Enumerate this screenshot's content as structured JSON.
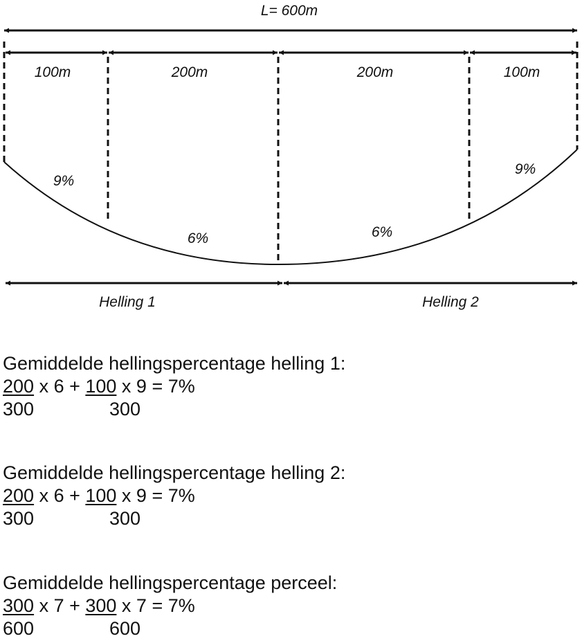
{
  "diagram": {
    "total_label": "L= 600m",
    "segments": [
      {
        "length_label": "100m",
        "slope_label": "9%"
      },
      {
        "length_label": "200m",
        "slope_label": "6%"
      },
      {
        "length_label": "200m",
        "slope_label": "6%"
      },
      {
        "length_label": "100m",
        "slope_label": "9%"
      }
    ],
    "slopes": [
      {
        "label": "Helling 1"
      },
      {
        "label": "Helling 2"
      }
    ]
  },
  "calculations": [
    {
      "heading": "Gemiddelde hellingspercentage helling 1:",
      "term1_num": "200",
      "term1_rest": " x 6 + ",
      "term2_num": "100",
      "term2_rest": " x 9 = 7%",
      "den1": "300",
      "den2": "300"
    },
    {
      "heading": "Gemiddelde hellingspercentage helling 2:",
      "term1_num": "200",
      "term1_rest": " x 6 + ",
      "term2_num": "100",
      "term2_rest": " x 9 = 7%",
      "den1": "300",
      "den2": "300"
    },
    {
      "heading": "Gemiddelde hellingspercentage perceel:",
      "term1_num": "300",
      "term1_rest": " x 7 + ",
      "term2_num": "300",
      "term2_rest": " x 7 = 7%",
      "den1": "600",
      "den2": "600"
    }
  ]
}
